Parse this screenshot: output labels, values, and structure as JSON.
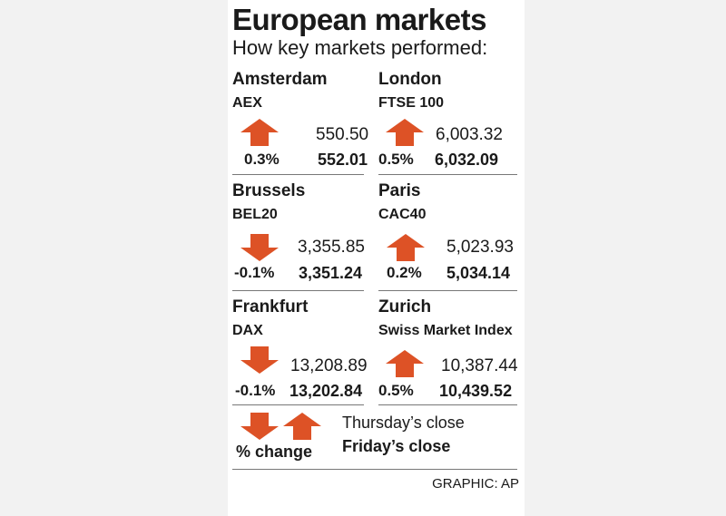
{
  "colors": {
    "arrow": "#dd5226",
    "rule": "#777777",
    "panel": "#ffffff",
    "background": "#f2f2f2"
  },
  "chart_data": {
    "type": "table",
    "title": "European markets",
    "subtitle": "How key markets performed:",
    "markets": [
      {
        "city": "Amsterdam",
        "index": "AEX",
        "direction": "up",
        "pct_change": "0.3%",
        "thursday_close": "550.50",
        "friday_close": "552.01"
      },
      {
        "city": "London",
        "index": "FTSE 100",
        "direction": "up",
        "pct_change": "0.5%",
        "thursday_close": "6,003.32",
        "friday_close": "6,032.09"
      },
      {
        "city": "Brussels",
        "index": "BEL20",
        "direction": "down",
        "pct_change": "-0.1%",
        "thursday_close": "3,355.85",
        "friday_close": "3,351.24"
      },
      {
        "city": "Paris",
        "index": "CAC40",
        "direction": "up",
        "pct_change": "0.2%",
        "thursday_close": "5,023.93",
        "friday_close": "5,034.14"
      },
      {
        "city": "Frankfurt",
        "index": "DAX",
        "direction": "down",
        "pct_change": "-0.1%",
        "thursday_close": "13,208.89",
        "friday_close": "13,202.84"
      },
      {
        "city": "Zurich",
        "index": "Swiss Market Index",
        "direction": "up",
        "pct_change": "0.5%",
        "thursday_close": "10,387.44",
        "friday_close": "10,439.52"
      }
    ],
    "legend": {
      "pct_label": "% change",
      "thursday_label": "Thursday’s close",
      "friday_label": "Friday’s close"
    },
    "credit": "GRAPHIC: AP"
  }
}
